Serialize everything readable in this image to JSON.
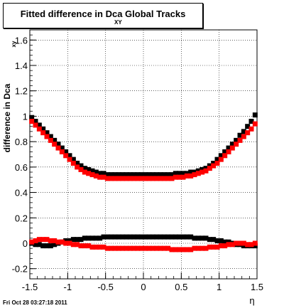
{
  "title": {
    "main": "Fitted difference in Dca Global Tracks",
    "subscript": "XY"
  },
  "footer": {
    "date": "Fri Oct 28 03:27:18 2011"
  },
  "colors": {
    "series_black": "#000000",
    "series_red": "#ff0000",
    "grid": "#000000",
    "background": "#ffffff"
  },
  "chart_data": {
    "type": "scatter",
    "title": "Fitted difference in Dca Global Tracks",
    "xlabel": "η",
    "ylabel": "difference in Dca",
    "ylabel_subscript": "xy",
    "xlim": [
      -1.5,
      1.5
    ],
    "ylim": [
      -0.28,
      1.68
    ],
    "grid": true,
    "legend": "none",
    "xticks": [
      -1.5,
      -1,
      -0.5,
      0,
      0.5,
      1,
      1.5
    ],
    "xtick_labels": [
      "-1.5",
      "-1",
      "-0.5",
      "0",
      "0.5",
      "1",
      "1.5"
    ],
    "yticks": [
      -0.2,
      0,
      0.2,
      0.4,
      0.6,
      0.8,
      1,
      1.2,
      1.4,
      1.6
    ],
    "ytick_labels": [
      "-0.2",
      "0",
      "0.2",
      "0.4",
      "0.6",
      "0.8",
      "1",
      "1.2",
      "1.4",
      "1.6"
    ],
    "x": [
      -1.475,
      -1.425,
      -1.375,
      -1.325,
      -1.275,
      -1.225,
      -1.175,
      -1.125,
      -1.075,
      -1.025,
      -0.975,
      -0.925,
      -0.875,
      -0.825,
      -0.775,
      -0.725,
      -0.675,
      -0.625,
      -0.575,
      -0.525,
      -0.475,
      -0.425,
      -0.375,
      -0.325,
      -0.275,
      -0.225,
      -0.175,
      -0.125,
      -0.075,
      -0.025,
      0.025,
      0.075,
      0.125,
      0.175,
      0.225,
      0.275,
      0.325,
      0.375,
      0.425,
      0.475,
      0.525,
      0.575,
      0.625,
      0.675,
      0.725,
      0.775,
      0.825,
      0.875,
      0.925,
      0.975,
      1.025,
      1.075,
      1.125,
      1.175,
      1.225,
      1.275,
      1.325,
      1.375,
      1.425,
      1.475
    ],
    "series": [
      {
        "color": "#000000",
        "values": [
          0.99,
          0.96,
          0.93,
          0.9,
          0.87,
          0.84,
          0.81,
          0.78,
          0.75,
          0.72,
          0.69,
          0.66,
          0.63,
          0.61,
          0.59,
          0.58,
          0.57,
          0.56,
          0.55,
          0.55,
          0.54,
          0.54,
          0.54,
          0.54,
          0.54,
          0.54,
          0.54,
          0.54,
          0.54,
          0.54,
          0.54,
          0.54,
          0.54,
          0.54,
          0.54,
          0.54,
          0.54,
          0.54,
          0.55,
          0.55,
          0.55,
          0.55,
          0.56,
          0.56,
          0.57,
          0.58,
          0.59,
          0.61,
          0.63,
          0.66,
          0.69,
          0.72,
          0.75,
          0.78,
          0.81,
          0.85,
          0.88,
          0.92,
          0.96,
          1.01
        ]
      },
      {
        "color": "#ff0000",
        "values": [
          0.96,
          0.93,
          0.9,
          0.87,
          0.84,
          0.81,
          0.78,
          0.75,
          0.72,
          0.69,
          0.66,
          0.63,
          0.6,
          0.58,
          0.56,
          0.55,
          0.54,
          0.53,
          0.52,
          0.52,
          0.51,
          0.51,
          0.51,
          0.51,
          0.51,
          0.51,
          0.51,
          0.51,
          0.51,
          0.51,
          0.51,
          0.51,
          0.51,
          0.51,
          0.51,
          0.51,
          0.51,
          0.51,
          0.52,
          0.52,
          0.52,
          0.53,
          0.53,
          0.54,
          0.55,
          0.56,
          0.57,
          0.59,
          0.61,
          0.63,
          0.66,
          0.69,
          0.72,
          0.75,
          0.78,
          0.81,
          0.84,
          0.87,
          0.9,
          0.94
        ]
      },
      {
        "color": "#000000",
        "values": [
          0.0,
          -0.01,
          -0.01,
          -0.02,
          -0.02,
          -0.02,
          -0.01,
          0.0,
          0.01,
          0.02,
          0.02,
          0.03,
          0.03,
          0.03,
          0.04,
          0.04,
          0.04,
          0.04,
          0.04,
          0.05,
          0.05,
          0.05,
          0.05,
          0.05,
          0.05,
          0.05,
          0.05,
          0.05,
          0.05,
          0.05,
          0.05,
          0.05,
          0.05,
          0.05,
          0.05,
          0.05,
          0.05,
          0.05,
          0.05,
          0.05,
          0.05,
          0.05,
          0.05,
          0.04,
          0.04,
          0.04,
          0.04,
          0.03,
          0.03,
          0.02,
          0.02,
          0.01,
          0.01,
          0.0,
          -0.01,
          -0.01,
          -0.02,
          -0.02,
          -0.02,
          -0.02
        ]
      },
      {
        "color": "#ff0000",
        "values": [
          0.01,
          0.02,
          0.03,
          0.03,
          0.03,
          0.02,
          0.02,
          0.01,
          0.01,
          0.0,
          0.0,
          -0.01,
          -0.01,
          -0.02,
          -0.02,
          -0.02,
          -0.03,
          -0.03,
          -0.03,
          -0.03,
          -0.04,
          -0.04,
          -0.04,
          -0.04,
          -0.04,
          -0.04,
          -0.04,
          -0.04,
          -0.04,
          -0.04,
          -0.04,
          -0.04,
          -0.04,
          -0.04,
          -0.04,
          -0.04,
          -0.04,
          -0.05,
          -0.05,
          -0.05,
          -0.05,
          -0.05,
          -0.05,
          -0.04,
          -0.04,
          -0.04,
          -0.04,
          -0.03,
          -0.03,
          -0.03,
          -0.02,
          -0.02,
          -0.01,
          -0.01,
          0.0,
          0.0,
          0.0,
          -0.01,
          -0.01,
          0.0
        ]
      }
    ]
  }
}
